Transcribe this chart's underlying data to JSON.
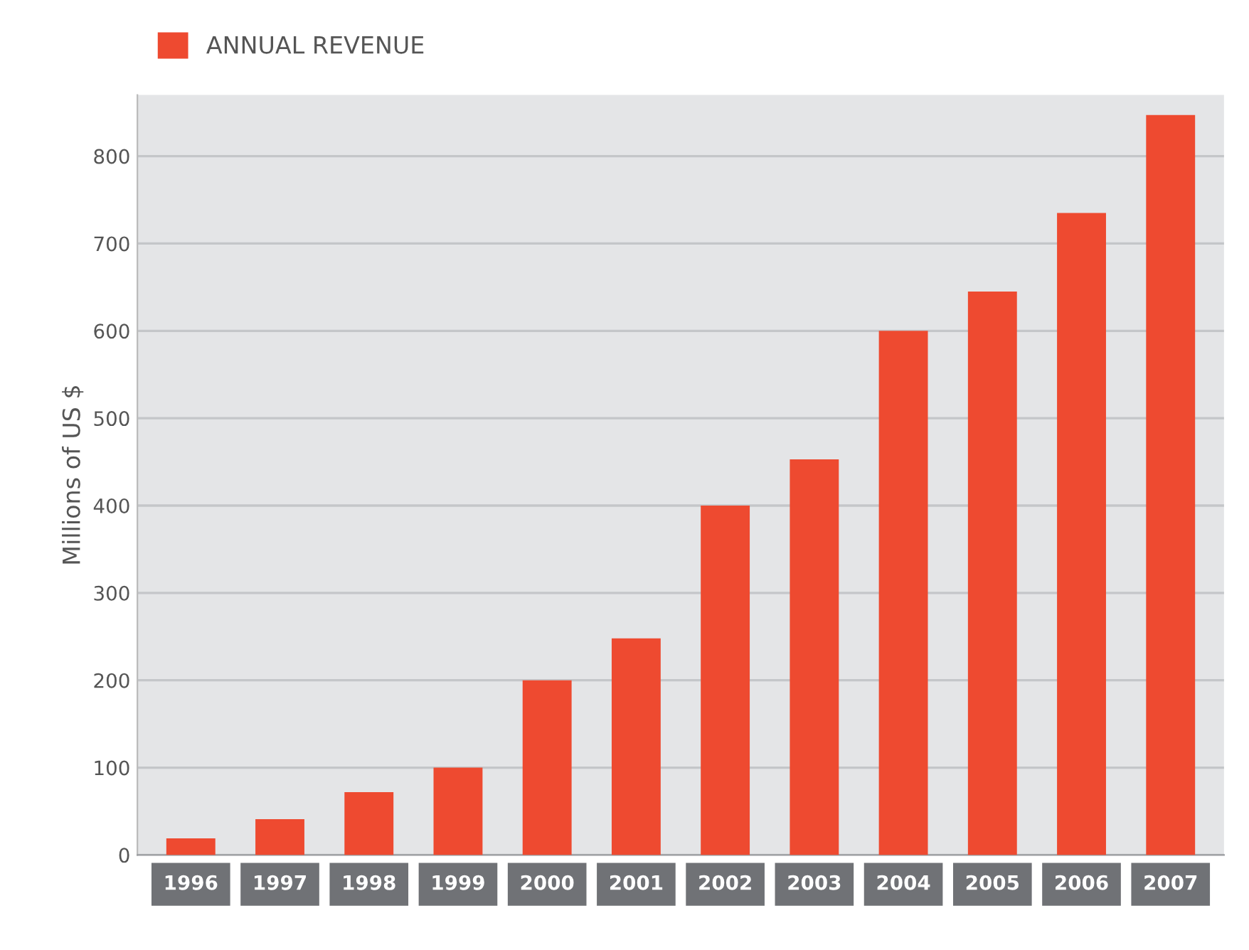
{
  "chart_data": {
    "type": "bar",
    "ylabel": "Millions of US $",
    "categories": [
      "1996",
      "1997",
      "1998",
      "1999",
      "2000",
      "2001",
      "2002",
      "2003",
      "2004",
      "2005",
      "2006",
      "2007"
    ],
    "series": [
      {
        "name": "ANNUAL REVENUE",
        "color": "#ee4a30",
        "values": [
          19,
          41,
          72,
          100,
          200,
          248,
          400,
          453,
          600,
          645,
          735,
          847
        ]
      }
    ],
    "ylim": [
      0,
      870
    ],
    "yticks": [
      0,
      100,
      200,
      300,
      400,
      500,
      600,
      700,
      800
    ],
    "grid": "y",
    "legend": "top left"
  }
}
